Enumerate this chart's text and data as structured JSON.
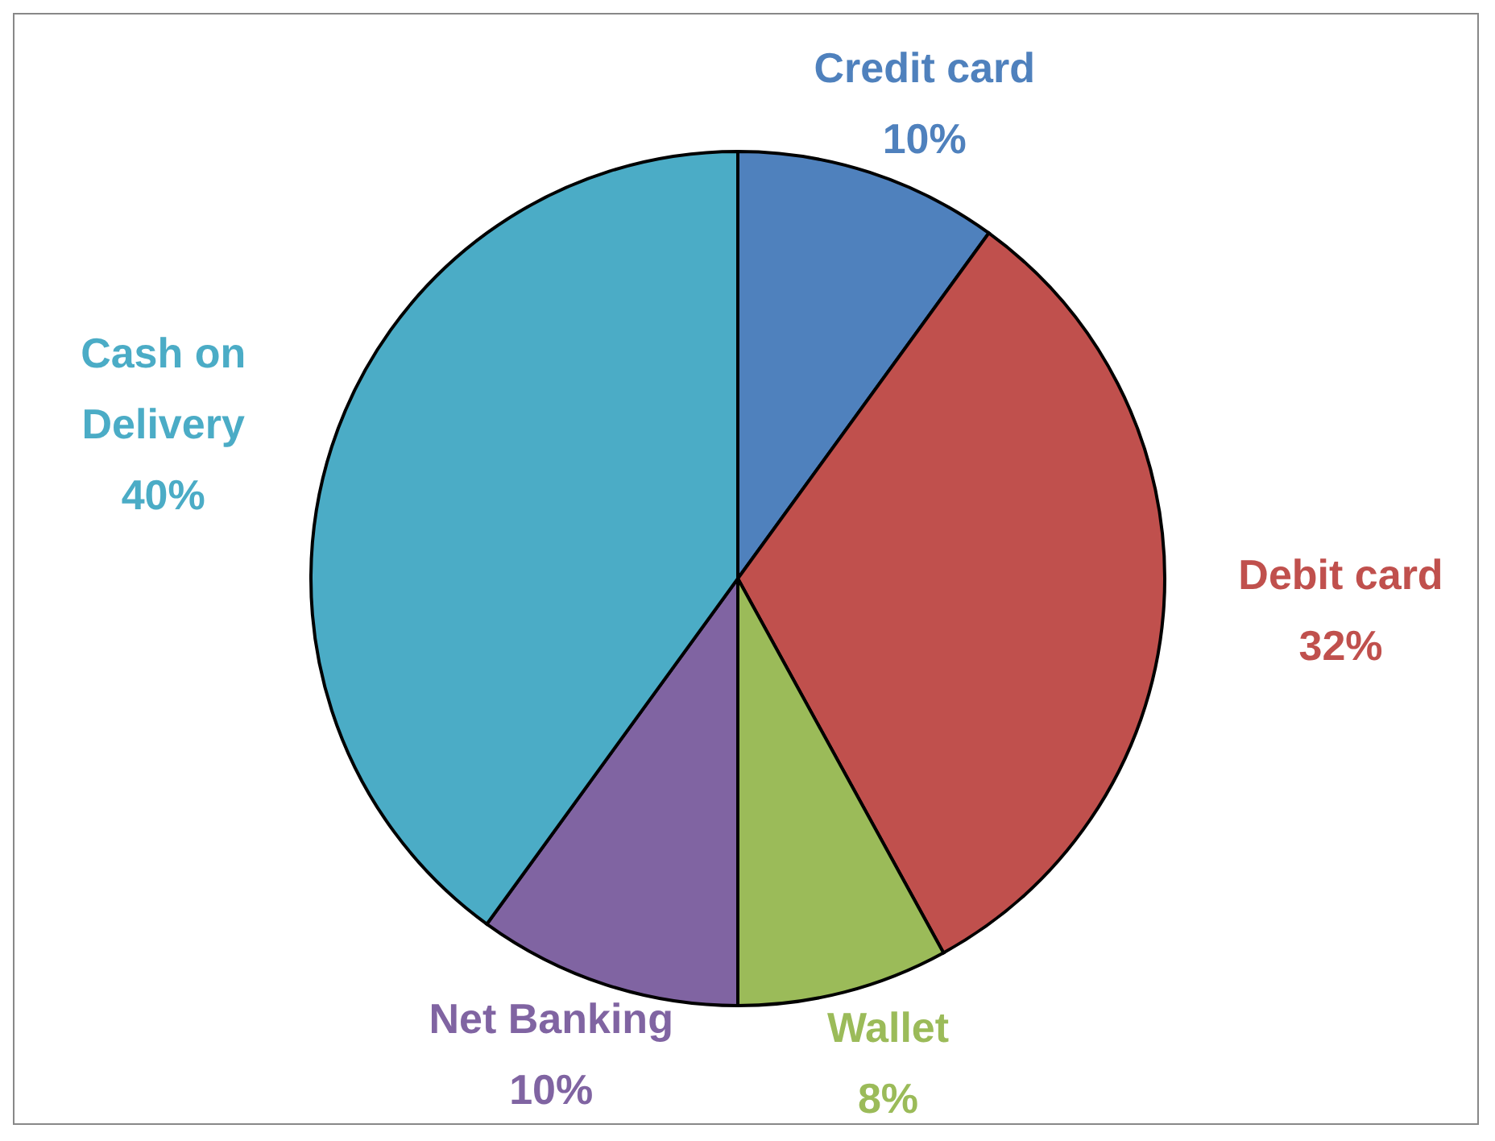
{
  "chart_data": {
    "type": "pie",
    "categories": [
      "Credit card",
      "Debit card",
      "Wallet",
      "Net Banking",
      "Cash on Delivery"
    ],
    "values": [
      10,
      32,
      8,
      10,
      40
    ],
    "value_labels": [
      "10%",
      "32%",
      "8%",
      "10%",
      "40%"
    ],
    "colors": [
      "#4f81bd",
      "#c0504d",
      "#9bbb59",
      "#8064a2",
      "#4bacc6"
    ],
    "legend": false
  }
}
